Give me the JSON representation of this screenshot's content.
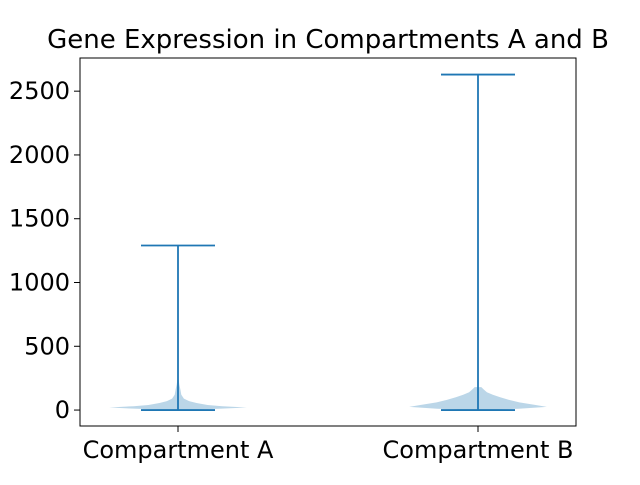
{
  "chart_data": {
    "type": "violin",
    "title": "Gene Expression in Compartments A and B",
    "xlabel": "",
    "ylabel": "",
    "categories": [
      "Compartment A",
      "Compartment B"
    ],
    "ylim": [
      -125,
      2760
    ],
    "yticks": [
      0,
      500,
      1000,
      1500,
      2000,
      2500
    ],
    "ytick_labels": [
      "0",
      "500",
      "1000",
      "1500",
      "2000",
      "2500"
    ],
    "grid": false,
    "series": [
      {
        "category": "Compartment A",
        "min": 0,
        "max": 1290,
        "density_profile": [
          [
            0,
            0.025
          ],
          [
            10,
            0.55
          ],
          [
            20,
            0.93
          ],
          [
            30,
            0.6
          ],
          [
            40,
            0.4
          ],
          [
            55,
            0.25
          ],
          [
            70,
            0.15
          ],
          [
            90,
            0.08
          ],
          [
            120,
            0.045
          ],
          [
            160,
            0.032
          ],
          [
            200,
            0.018
          ],
          [
            240,
            0.008
          ]
        ]
      },
      {
        "category": "Compartment B",
        "min": 0,
        "max": 2630,
        "density_profile": [
          [
            0,
            0.03
          ],
          [
            10,
            0.55
          ],
          [
            25,
            0.93
          ],
          [
            40,
            0.78
          ],
          [
            60,
            0.56
          ],
          [
            80,
            0.42
          ],
          [
            100,
            0.3
          ],
          [
            120,
            0.2
          ],
          [
            140,
            0.12
          ],
          [
            160,
            0.08
          ],
          [
            180,
            0.045
          ]
        ]
      }
    ],
    "colors": {
      "violin_fill": "#1f77b4",
      "violin_fill_opacity": 0.3,
      "line": "#1f77b4"
    }
  }
}
